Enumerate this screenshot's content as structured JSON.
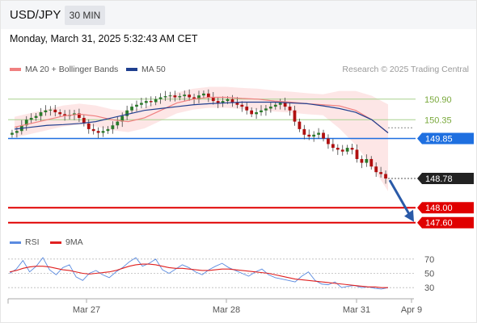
{
  "header": {
    "symbol": "USD/JPY",
    "timeframe": "30 MIN"
  },
  "datetime": "Monday, March 31, 2025 5:32:43 AM CET",
  "legend": {
    "ma20_label": "MA 20 + Bollinger Bands",
    "ma50_label": "MA 50",
    "copyright": "Research © 2025 Trading Central",
    "rsi_label": "RSI",
    "ma9_label": "9MA"
  },
  "colors": {
    "ma20": "#f08080",
    "ma50": "#1f3f8f",
    "support_resistance": "#a8d18d",
    "pivot": "#1e6fe0",
    "target": "#e00000",
    "candle_up": "#2a7a2a",
    "candle_down": "#b01010",
    "rsi": "#5b8be0",
    "rsi_ma": "#e02020"
  },
  "chart_data": [
    {
      "type": "candlestick",
      "title": "USD/JPY 30 MIN",
      "x_tick_labels": [
        "Mar 27",
        "Mar 28",
        "Mar 31",
        "Apr 9"
      ],
      "y_range": [
        147.4,
        151.5
      ],
      "levels": [
        {
          "label": "150.90",
          "value": 150.9,
          "kind": "resistance"
        },
        {
          "label": "150.35",
          "value": 150.35,
          "kind": "resistance"
        },
        {
          "label": "149.85",
          "value": 149.85,
          "kind": "pivot"
        },
        {
          "label": "148.78",
          "value": 148.78,
          "kind": "last_price"
        },
        {
          "label": "148.00",
          "value": 148.0,
          "kind": "target"
        },
        {
          "label": "147.60",
          "value": 147.6,
          "kind": "target"
        }
      ],
      "price_path": [
        150.0,
        150.05,
        150.2,
        150.35,
        150.4,
        150.45,
        150.55,
        150.6,
        150.62,
        150.55,
        150.5,
        150.45,
        150.48,
        150.52,
        150.4,
        150.25,
        150.1,
        150.05,
        150.0,
        150.05,
        150.1,
        150.2,
        150.3,
        150.45,
        150.6,
        150.7,
        150.75,
        150.8,
        150.85,
        150.82,
        150.9,
        150.95,
        150.98,
        151.0,
        150.95,
        150.98,
        151.02,
        150.95,
        150.9,
        151.0,
        151.05,
        150.95,
        150.85,
        150.8,
        150.85,
        150.9,
        150.82,
        150.75,
        150.7,
        150.6,
        150.5,
        150.55,
        150.6,
        150.65,
        150.7,
        150.75,
        150.8,
        150.7,
        150.6,
        150.3,
        150.1,
        149.95,
        149.9,
        149.95,
        150.0,
        149.85,
        149.7,
        149.6,
        149.55,
        149.5,
        149.6,
        149.55,
        149.3,
        149.2,
        149.3,
        149.1,
        148.95,
        148.9,
        148.78
      ],
      "ma20": [
        150.15,
        150.25,
        150.35,
        150.45,
        150.5,
        150.45,
        150.35,
        150.3,
        150.4,
        150.6,
        150.8,
        150.9,
        150.95,
        150.95,
        150.92,
        150.9,
        150.85,
        150.82,
        150.78,
        150.75,
        150.72,
        150.6,
        150.35,
        150.0
      ],
      "ma50": [
        150.1,
        150.15,
        150.2,
        150.22,
        150.25,
        150.3,
        150.4,
        150.5,
        150.6,
        150.65,
        150.7,
        150.75,
        150.78,
        150.8,
        150.82,
        150.82,
        150.82,
        150.8,
        150.78,
        150.72,
        150.65,
        150.55,
        150.35,
        150.0
      ],
      "forecast": {
        "from": 148.78,
        "to": 147.6
      }
    },
    {
      "type": "line",
      "title": "RSI",
      "y_tick_labels": [
        "70",
        "50",
        "30"
      ],
      "y_range": [
        20,
        80
      ],
      "series": [
        {
          "name": "RSI",
          "values": [
            50,
            56,
            68,
            52,
            60,
            72,
            55,
            48,
            58,
            62,
            45,
            40,
            50,
            54,
            48,
            44,
            52,
            58,
            66,
            72,
            60,
            64,
            70,
            55,
            50,
            56,
            62,
            58,
            52,
            48,
            55,
            60,
            64,
            58,
            54,
            50,
            46,
            52,
            56,
            48,
            44,
            42,
            40,
            38,
            46,
            52,
            40,
            35,
            34,
            38,
            30,
            32,
            33,
            30,
            31,
            29,
            28,
            30
          ]
        },
        {
          "name": "9MA",
          "values": [
            52,
            54,
            57,
            59,
            60,
            60,
            59,
            57,
            55,
            54,
            52,
            50,
            49,
            50,
            51,
            52,
            54,
            57,
            60,
            62,
            63,
            63,
            62,
            60,
            58,
            57,
            57,
            56,
            55,
            54,
            54,
            55,
            56,
            56,
            55,
            54,
            53,
            52,
            51,
            50,
            48,
            46,
            44,
            42,
            41,
            40,
            39,
            38,
            37,
            36,
            35,
            34,
            33,
            32,
            31,
            31,
            30,
            30
          ]
        }
      ]
    }
  ]
}
